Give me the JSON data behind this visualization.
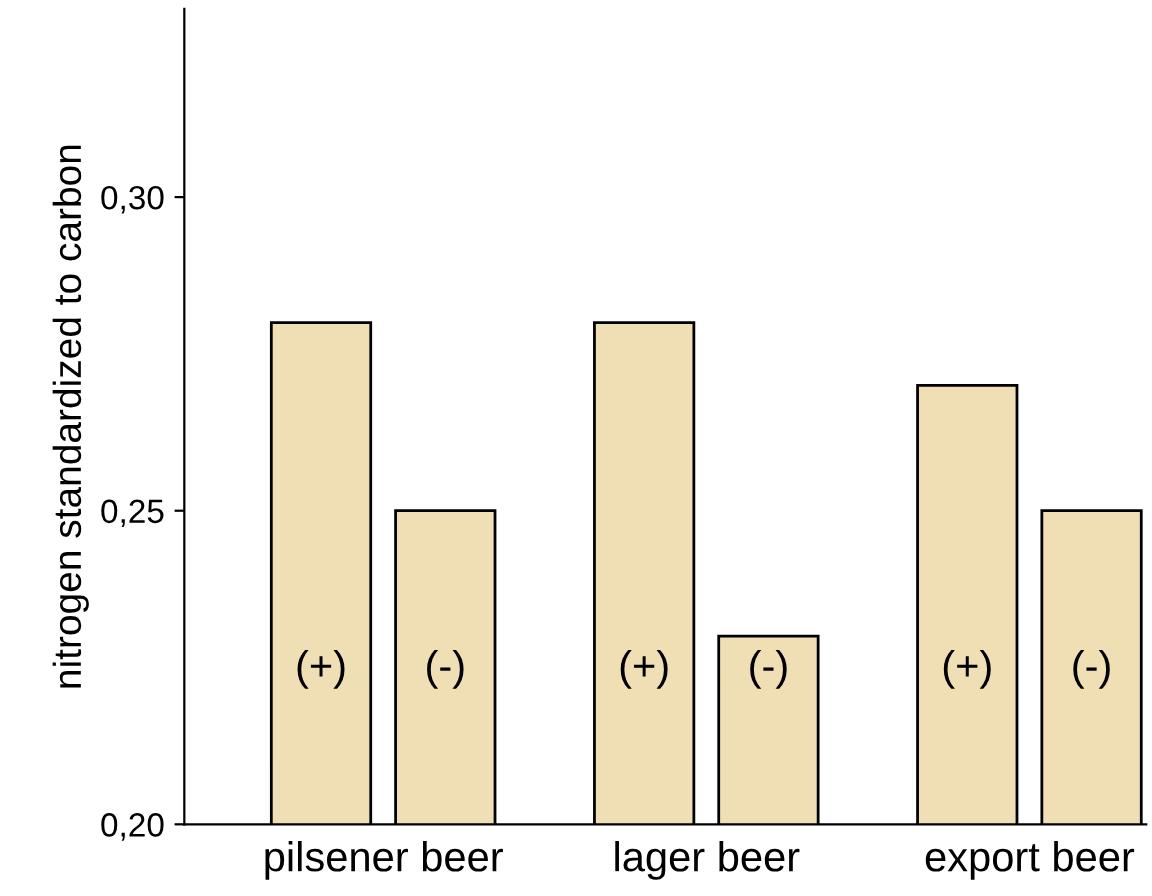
{
  "chart_data": {
    "type": "bar",
    "ylabel": "nitrogen standardized to carbon",
    "categories": [
      "pilsener beer",
      "lager beer",
      "export beer"
    ],
    "series": [
      {
        "name": "(+)",
        "color": "#f0deb4",
        "values": [
          0.28,
          0.28,
          0.27
        ]
      },
      {
        "name": "(-)",
        "color": "#f0deb4",
        "values": [
          0.25,
          0.23,
          0.25
        ]
      }
    ],
    "ylim": [
      0.2,
      0.33
    ],
    "yticks": [
      {
        "value": 0.2,
        "label": "0,20"
      },
      {
        "value": 0.25,
        "label": "0,25"
      },
      {
        "value": 0.3,
        "label": "0,30"
      }
    ],
    "grid": false,
    "legend": false
  }
}
